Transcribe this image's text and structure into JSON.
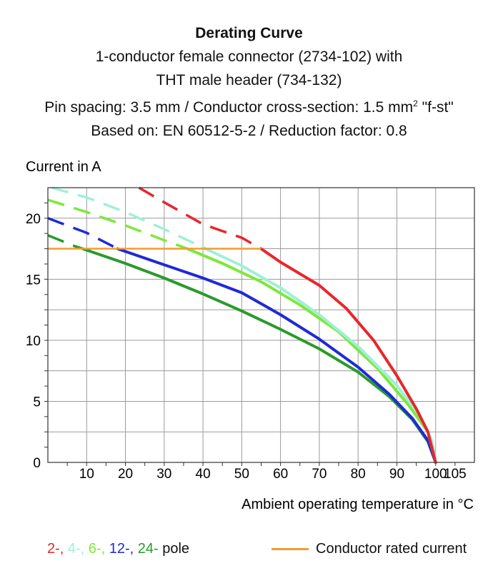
{
  "header": {
    "title": "Derating Curve",
    "line1": "1-conductor female connector (2734-102) with",
    "line2": "THT male header (734-132)",
    "line3a": "Pin spacing: 3.5 mm / Conductor cross-section: 1.5 mm",
    "line3sup": "2",
    "line3b": " \"f-st\"",
    "line4": "Based on: EN 60512-5-2 / Reduction factor: 0.8"
  },
  "legend": {
    "poles": [
      {
        "label": "2-,",
        "color": "#e8262c"
      },
      {
        "label": "4-,",
        "color": "#9ef0d8"
      },
      {
        "label": "6-,",
        "color": "#7ee83a"
      },
      {
        "label": "12-,",
        "color": "#1f2ad6"
      },
      {
        "label": "24-",
        "color": "#2a9a2a"
      }
    ],
    "pole_suffix": "pole",
    "rated_label": "Conductor rated current",
    "rated_color": "#f39c2c"
  },
  "chart_data": {
    "type": "line",
    "ylabel": "Current in A",
    "xlabel": "Ambient operating temperature in °C",
    "xlim": [
      0,
      110
    ],
    "ylim": [
      0,
      22.5
    ],
    "x_ticks": [
      10,
      20,
      30,
      40,
      50,
      60,
      70,
      80,
      90,
      100,
      105
    ],
    "y_ticks": [
      0,
      5,
      10,
      15,
      20
    ],
    "grid": true,
    "rated_current": {
      "value": 17.5,
      "x_range": [
        0,
        55
      ]
    },
    "series": [
      {
        "name": "2-",
        "color": "#e8262c",
        "dashed": [
          [
            23.5,
            22.5
          ],
          [
            30,
            21.3
          ],
          [
            40,
            19.5
          ],
          [
            50,
            18.4
          ],
          [
            55,
            17.5
          ]
        ],
        "solid": [
          [
            55,
            17.5
          ],
          [
            60,
            16.4
          ],
          [
            70,
            14.5
          ],
          [
            77,
            12.6
          ],
          [
            84,
            10.0
          ],
          [
            90,
            7.1
          ],
          [
            95,
            4.4
          ],
          [
            98,
            2.5
          ],
          [
            100,
            0
          ]
        ]
      },
      {
        "name": "4-",
        "color": "#9ef0d8",
        "dashed": [
          [
            1,
            22.5
          ],
          [
            10,
            21.7
          ],
          [
            20,
            20.5
          ],
          [
            30,
            19.1
          ],
          [
            40,
            17.6
          ]
        ],
        "solid": [
          [
            40,
            17.6
          ],
          [
            50,
            16.1
          ],
          [
            60,
            14.3
          ],
          [
            70,
            12.1
          ],
          [
            80,
            9.5
          ],
          [
            90,
            6.3
          ],
          [
            96,
            3.8
          ],
          [
            99,
            1.8
          ],
          [
            100,
            0
          ]
        ]
      },
      {
        "name": "6-",
        "color": "#7ee83a",
        "dashed": [
          [
            0,
            21.5
          ],
          [
            10,
            20.5
          ],
          [
            20,
            19.4
          ],
          [
            30,
            18.2
          ],
          [
            36,
            17.5
          ]
        ],
        "solid": [
          [
            36,
            17.5
          ],
          [
            45,
            16.3
          ],
          [
            55,
            14.8
          ],
          [
            65,
            12.9
          ],
          [
            75,
            10.7
          ],
          [
            85,
            7.7
          ],
          [
            93,
            4.7
          ],
          [
            98,
            2.5
          ],
          [
            100,
            0
          ]
        ]
      },
      {
        "name": "12-",
        "color": "#1f2ad6",
        "dashed": [
          [
            0,
            20.0
          ],
          [
            10,
            18.8
          ],
          [
            18,
            17.5
          ]
        ],
        "solid": [
          [
            18,
            17.5
          ],
          [
            28,
            16.4
          ],
          [
            40,
            15.1
          ],
          [
            50,
            13.9
          ],
          [
            60,
            12.1
          ],
          [
            70,
            10.1
          ],
          [
            80,
            7.8
          ],
          [
            88,
            5.6
          ],
          [
            94,
            3.6
          ],
          [
            98,
            1.8
          ],
          [
            100,
            0
          ]
        ]
      },
      {
        "name": "24-",
        "color": "#2a9a2a",
        "dashed": [
          [
            0,
            18.6
          ],
          [
            7,
            17.7
          ],
          [
            9,
            17.5
          ]
        ],
        "solid": [
          [
            9,
            17.5
          ],
          [
            20,
            16.3
          ],
          [
            30,
            15.1
          ],
          [
            40,
            13.8
          ],
          [
            50,
            12.4
          ],
          [
            60,
            10.9
          ],
          [
            70,
            9.3
          ],
          [
            80,
            7.4
          ],
          [
            88,
            5.4
          ],
          [
            94,
            3.5
          ],
          [
            98,
            1.7
          ],
          [
            100,
            0
          ]
        ]
      }
    ]
  }
}
